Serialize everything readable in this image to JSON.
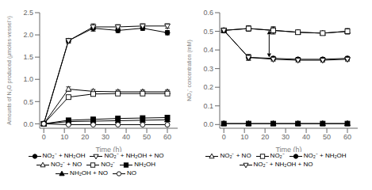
{
  "chart_data": [
    {
      "type": "line",
      "xlabel": "Time (h)",
      "ylabel": "Amounts of N₂O produced (μmoles·vessel⁻¹)",
      "xlim": [
        -2,
        65
      ],
      "ylim": [
        -0.1,
        2.5
      ],
      "xticks": [
        0,
        10,
        20,
        30,
        40,
        50,
        60
      ],
      "yticks": [
        {
          "value": 0,
          "label": "0.0"
        },
        0.5,
        {
          "value": 1,
          "label": "1.0"
        },
        1.5,
        {
          "value": 2,
          "label": "2.0"
        },
        2.5
      ],
      "grid": false,
      "legend": "bottom",
      "series": [
        {
          "name": "NO₂⁻ + NH₂OH",
          "color": "black",
          "marker": "circle-filled",
          "x": [
            0,
            12,
            24,
            36,
            48,
            60
          ],
          "values": [
            0,
            1.87,
            2.15,
            2.1,
            2.15,
            2.05
          ],
          "yerr": [
            0.001,
            0.05,
            0.07,
            0.05,
            0.05,
            0.05
          ]
        },
        {
          "name": "NO₂⁻ + NH₂OH + NO",
          "color": "black",
          "marker": "triangle_down-open",
          "x": [
            0,
            12,
            24,
            36,
            48,
            60
          ],
          "values": [
            0,
            1.87,
            2.18,
            2.18,
            2.2,
            2.2
          ],
          "yerr": [
            0.001,
            0.05,
            0.07,
            0.05,
            0.05,
            0.05
          ]
        },
        {
          "name": "NO₂⁻ + NO",
          "color": "black",
          "marker": "triangle_up-open",
          "x": [
            0,
            12,
            24,
            36,
            48,
            60
          ],
          "values": [
            0,
            0.78,
            0.73,
            0.72,
            0.72,
            0.72
          ],
          "yerr": [
            0.001,
            0.05,
            0.04,
            0.04,
            0.04,
            0.04
          ]
        },
        {
          "name": "NO₂⁻",
          "color": "black",
          "marker": "square-open",
          "x": [
            0,
            12,
            24,
            36,
            48,
            60
          ],
          "values": [
            0,
            0.6,
            0.67,
            0.68,
            0.68,
            0.68
          ],
          "yerr": [
            0.001,
            0.04,
            0.04,
            0.04,
            0.04,
            0.04
          ]
        },
        {
          "name": "NH₂OH",
          "color": "black",
          "marker": "square-filled",
          "x": [
            0,
            12,
            24,
            36,
            48,
            60
          ],
          "values": [
            0,
            0.08,
            0.1,
            0.12,
            0.13,
            0.14
          ],
          "yerr": [
            0.001,
            0.01,
            0.01,
            0.01,
            0.01,
            0.01
          ]
        },
        {
          "name": "NH₂OH + NO",
          "color": "black",
          "marker": "triangle_up-filled",
          "x": [
            0,
            12,
            24,
            36,
            48,
            60
          ],
          "values": [
            0,
            0.05,
            0.06,
            0.07,
            0.08,
            0.09
          ],
          "yerr": [
            0.001,
            0.01,
            0.01,
            0.01,
            0.01,
            0.01
          ]
        },
        {
          "name": "NO",
          "color": "black",
          "marker": "circle-open",
          "x": [
            0,
            12,
            24,
            36,
            48,
            60
          ],
          "values": [
            0,
            -0.02,
            -0.02,
            -0.02,
            -0.02,
            -0.02
          ],
          "yerr": [
            0.001,
            0.01,
            0.01,
            0.01,
            0.01,
            0.01
          ]
        }
      ]
    },
    {
      "type": "line",
      "xlabel": "Time (h)",
      "ylabel": "NO₂⁻ concentration (mM)",
      "xlim": [
        -2,
        65
      ],
      "ylim": [
        -0.02,
        0.6
      ],
      "xticks": [
        0,
        10,
        20,
        30,
        40,
        50,
        60
      ],
      "yticks": [
        {
          "value": 0,
          "label": "0.0"
        },
        0.1,
        0.2,
        0.3,
        0.4,
        0.5,
        0.6
      ],
      "grid": false,
      "legend": "bottom",
      "arrow": {
        "x": 22,
        "y_top": 0.505,
        "y_bottom": 0.36
      },
      "series": [
        {
          "name": "NO₂⁻ + NO",
          "color": "black",
          "marker": "triangle_up-open",
          "x": [
            0,
            12,
            24,
            36,
            48,
            60
          ],
          "values": [
            0.505,
            0.515,
            0.505,
            0.495,
            0.49,
            0.5
          ],
          "yerr": [
            0.01,
            0.015,
            0.02,
            0.01,
            0.01,
            0.015
          ]
        },
        {
          "name": "NO₂⁻",
          "color": "black",
          "marker": "square-open",
          "x": [
            0,
            12,
            24,
            36,
            48,
            60
          ],
          "values": [
            0.505,
            0.515,
            0.505,
            0.495,
            0.49,
            0.5
          ],
          "yerr": [
            0.01,
            0.01,
            0.015,
            0.01,
            0.01,
            0.01
          ]
        },
        {
          "name": "NO₂⁻ + NH₂OH",
          "color": "black",
          "marker": "circle-filled",
          "x": [
            0,
            12,
            24,
            36,
            48,
            60
          ],
          "values": [
            0.505,
            0.36,
            0.355,
            0.35,
            0.35,
            0.355
          ],
          "yerr": [
            0.01,
            0.015,
            0.01,
            0.01,
            0.01,
            0.01
          ]
        },
        {
          "name": "NO₂⁻ + NH₂OH + NO",
          "color": "black",
          "marker": "triangle_down-open",
          "x": [
            0,
            12,
            24,
            36,
            48,
            60
          ],
          "values": [
            0.505,
            0.36,
            0.35,
            0.345,
            0.345,
            0.35
          ],
          "yerr": [
            0.01,
            0.015,
            0.01,
            0.01,
            0.01,
            0.01
          ]
        },
        {
          "color": "black",
          "marker": "square-filled",
          "x": [
            0,
            12,
            24,
            36,
            48,
            60
          ],
          "values": [
            0.005,
            0.005,
            0.005,
            0.005,
            0.005,
            0.005
          ],
          "yerr": [
            0.001,
            0.001,
            0.001,
            0.001,
            0.001,
            0.001
          ]
        },
        {
          "color": "black",
          "marker": "triangle_up-filled",
          "x": [
            0,
            12,
            24,
            36,
            48,
            60
          ],
          "values": [
            0.005,
            0.005,
            0.005,
            0.005,
            0.005,
            0.005
          ],
          "yerr": [
            0.001,
            0.001,
            0.001,
            0.001,
            0.001,
            0.001
          ]
        }
      ]
    }
  ]
}
